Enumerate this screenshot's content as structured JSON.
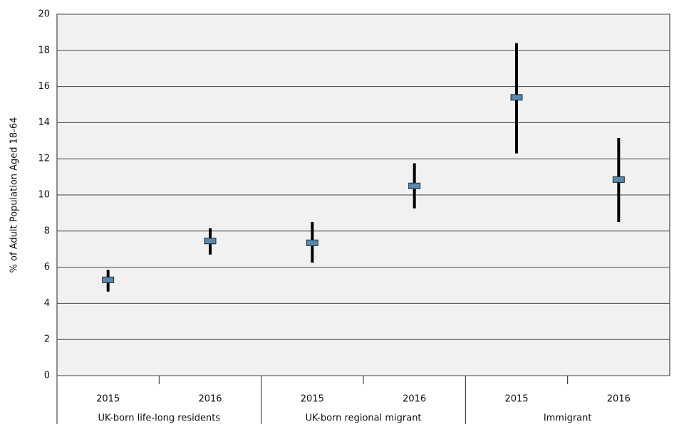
{
  "chart_data": {
    "type": "errorbar",
    "ylabel": "% of Adult Population Aged 18-64",
    "categories": [
      "2015",
      "2016",
      "2015",
      "2016",
      "2015",
      "2016"
    ],
    "groups": [
      "UK-born life-long residents",
      "UK-born regional migrant",
      "Immigrant"
    ],
    "series": [
      {
        "color": "#5b87a8",
        "values": [
          5.3,
          7.45,
          7.35,
          10.5,
          15.4,
          10.85
        ],
        "low": [
          4.65,
          6.7,
          6.25,
          9.25,
          12.3,
          8.5
        ],
        "high": [
          5.85,
          8.15,
          8.5,
          11.75,
          18.4,
          13.15
        ]
      }
    ],
    "ylim": [
      0,
      20
    ],
    "yticks": [
      0,
      2,
      4,
      6,
      8,
      10,
      12,
      14,
      16,
      18,
      20
    ],
    "grid": true
  }
}
